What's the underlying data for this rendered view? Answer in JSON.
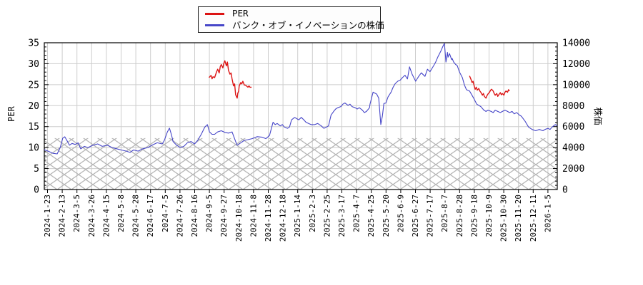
{
  "legend": {
    "position": "top-center",
    "items": [
      {
        "label": "PER",
        "color": "#dc1414"
      },
      {
        "label": "バンク・オブ・イノベーションの株価",
        "color": "#4646c8"
      }
    ]
  },
  "chart_data": {
    "type": "line",
    "title": "",
    "x_encoding": "percent along time axis from 2024-1-23 (0) to 2026-1-5 (≈98.3); values read from chart",
    "x_tick_labels": [
      "2024-1-23",
      "2024-2-13",
      "2024-3-5",
      "2024-3-26",
      "2024-4-15",
      "2024-5-8",
      "2024-5-28",
      "2024-6-17",
      "2024-7-5",
      "2024-7-26",
      "2024-8-16",
      "2024-9-5",
      "2024-9-27",
      "2024-10-18",
      "2024-11-8",
      "2024-11-28",
      "2024-12-18",
      "2025-1-14",
      "2025-2-3",
      "2025-2-25",
      "2025-3-17",
      "2025-4-7",
      "2025-4-25",
      "2025-5-20",
      "2025-6-9",
      "2025-6-27",
      "2025-7-17",
      "2025-8-7",
      "2025-8-28",
      "2025-9-18",
      "2025-10-9",
      "2025-10-30",
      "2025-11-20",
      "2025-12-11",
      "2026-1-5"
    ],
    "left_axis": {
      "label": "PER",
      "min": 0,
      "max": 35,
      "major_tick": 5,
      "minor_tick": 1,
      "tick_labels": [
        "0",
        "5",
        "10",
        "15",
        "20",
        "25",
        "30",
        "35"
      ]
    },
    "right_axis": {
      "label": "株価",
      "min": 0,
      "max": 14000,
      "major_tick": 2000,
      "minor_tick": 400,
      "tick_labels": [
        "0",
        "2000",
        "4000",
        "6000",
        "8000",
        "10000",
        "12000",
        "14000"
      ]
    },
    "grid": true,
    "legend_position": "top-center",
    "hatch_band": {
      "axis": "right",
      "from": 0,
      "to": 4900,
      "pattern": "crosshatch",
      "color": "#b5b5b5"
    },
    "style": {
      "grid_color": "#cdcdcd",
      "axis_color": "#000000",
      "background": "#ffffff"
    },
    "series": [
      {
        "name": "PER",
        "color": "#dc1414",
        "axis": "left",
        "type": "line",
        "segments": [
          [
            [
              32.1,
              26.7
            ],
            [
              32.5,
              27.2
            ],
            [
              32.7,
              26.4
            ],
            [
              32.9,
              26.9
            ],
            [
              33.2,
              26.7
            ],
            [
              33.6,
              28.1
            ],
            [
              33.8,
              28.7
            ],
            [
              34.1,
              27.8
            ],
            [
              34.3,
              29.3
            ],
            [
              34.5,
              29.8
            ],
            [
              34.8,
              29.0
            ],
            [
              35.0,
              30.1
            ],
            [
              35.2,
              30.7
            ],
            [
              35.5,
              29.5
            ],
            [
              35.7,
              30.4
            ],
            [
              35.9,
              28.4
            ],
            [
              36.2,
              27.5
            ],
            [
              36.4,
              27.8
            ],
            [
              36.6,
              26.4
            ],
            [
              36.9,
              24.7
            ],
            [
              37.1,
              25.2
            ],
            [
              37.3,
              22.6
            ],
            [
              37.6,
              21.8
            ],
            [
              37.7,
              22.9
            ],
            [
              37.9,
              23.5
            ],
            [
              38.0,
              24.7
            ],
            [
              38.3,
              25.5
            ],
            [
              38.5,
              25.2
            ],
            [
              38.7,
              25.8
            ],
            [
              39.0,
              24.9
            ],
            [
              39.2,
              24.9
            ],
            [
              39.4,
              24.7
            ],
            [
              39.7,
              24.4
            ],
            [
              39.9,
              24.7
            ],
            [
              40.1,
              24.4
            ],
            [
              40.4,
              24.4
            ]
          ],
          [
            [
              82.9,
              27.1
            ],
            [
              83.2,
              26.2
            ],
            [
              83.4,
              25.5
            ],
            [
              83.6,
              25.8
            ],
            [
              83.8,
              24.7
            ],
            [
              84.0,
              23.9
            ],
            [
              84.2,
              24.4
            ],
            [
              84.4,
              23.7
            ],
            [
              84.7,
              24.1
            ],
            [
              84.9,
              23.5
            ],
            [
              85.1,
              23.2
            ],
            [
              85.4,
              22.5
            ],
            [
              85.6,
              22.9
            ],
            [
              85.8,
              22.2
            ],
            [
              86.1,
              21.8
            ],
            [
              86.3,
              22.4
            ],
            [
              86.5,
              22.8
            ],
            [
              86.8,
              23.2
            ],
            [
              87.0,
              23.7
            ],
            [
              87.2,
              23.9
            ],
            [
              87.5,
              23.5
            ],
            [
              87.7,
              22.9
            ],
            [
              87.9,
              22.5
            ],
            [
              88.2,
              22.9
            ],
            [
              88.4,
              22.2
            ],
            [
              88.6,
              22.6
            ],
            [
              88.9,
              23.1
            ],
            [
              89.1,
              22.6
            ],
            [
              89.3,
              22.9
            ],
            [
              89.6,
              22.5
            ],
            [
              89.8,
              23.2
            ],
            [
              90.0,
              23.5
            ],
            [
              90.3,
              23.2
            ],
            [
              90.5,
              23.8
            ],
            [
              90.7,
              23.5
            ]
          ]
        ]
      },
      {
        "name": "バンク・オブ・イノベーションの株価",
        "color": "#4646c8",
        "axis": "right",
        "type": "line",
        "points": [
          [
            0,
            3800
          ],
          [
            0.8,
            3650
          ],
          [
            1.7,
            3450
          ],
          [
            2.5,
            3400
          ],
          [
            3.1,
            4000
          ],
          [
            3.6,
            4900
          ],
          [
            4.0,
            5030
          ],
          [
            4.5,
            4600
          ],
          [
            4.9,
            4230
          ],
          [
            5.4,
            4400
          ],
          [
            6.0,
            4300
          ],
          [
            6.6,
            4450
          ],
          [
            7.1,
            3880
          ],
          [
            7.8,
            4120
          ],
          [
            8.5,
            4000
          ],
          [
            9.5,
            4230
          ],
          [
            10.4,
            4350
          ],
          [
            11.3,
            4120
          ],
          [
            12.3,
            4230
          ],
          [
            13.2,
            4000
          ],
          [
            14.1,
            3890
          ],
          [
            15.0,
            3770
          ],
          [
            16.0,
            3660
          ],
          [
            16.7,
            3540
          ],
          [
            17.4,
            3770
          ],
          [
            18.3,
            3660
          ],
          [
            19.2,
            3890
          ],
          [
            20.2,
            4000
          ],
          [
            21.0,
            4230
          ],
          [
            22.0,
            4460
          ],
          [
            23.0,
            4350
          ],
          [
            23.4,
            4690
          ],
          [
            24.0,
            5500
          ],
          [
            24.4,
            5860
          ],
          [
            24.8,
            5200
          ],
          [
            25.1,
            4580
          ],
          [
            25.8,
            4230
          ],
          [
            26.5,
            4000
          ],
          [
            27.2,
            4120
          ],
          [
            27.9,
            4460
          ],
          [
            28.6,
            4580
          ],
          [
            29.3,
            4350
          ],
          [
            29.9,
            4690
          ],
          [
            30.6,
            5270
          ],
          [
            31.3,
            5960
          ],
          [
            31.8,
            6190
          ],
          [
            32.2,
            5500
          ],
          [
            32.7,
            5270
          ],
          [
            33.2,
            5270
          ],
          [
            33.8,
            5500
          ],
          [
            34.5,
            5610
          ],
          [
            35.2,
            5450
          ],
          [
            35.9,
            5380
          ],
          [
            36.6,
            5500
          ],
          [
            37.3,
            4580
          ],
          [
            37.6,
            4230
          ],
          [
            38.3,
            4460
          ],
          [
            39.0,
            4690
          ],
          [
            39.7,
            4760
          ],
          [
            40.5,
            4850
          ],
          [
            41.5,
            5040
          ],
          [
            42.5,
            4990
          ],
          [
            43.2,
            4850
          ],
          [
            43.9,
            5150
          ],
          [
            44.6,
            6420
          ],
          [
            45.0,
            6190
          ],
          [
            45.4,
            6300
          ],
          [
            46.0,
            6070
          ],
          [
            46.4,
            6190
          ],
          [
            46.8,
            5960
          ],
          [
            47.4,
            5840
          ],
          [
            47.8,
            5960
          ],
          [
            48.2,
            6650
          ],
          [
            48.8,
            6880
          ],
          [
            49.2,
            6760
          ],
          [
            49.6,
            6650
          ],
          [
            50.1,
            6880
          ],
          [
            50.6,
            6650
          ],
          [
            51.0,
            6420
          ],
          [
            51.5,
            6300
          ],
          [
            52.0,
            6190
          ],
          [
            52.7,
            6190
          ],
          [
            53.3,
            6300
          ],
          [
            54.0,
            6070
          ],
          [
            54.5,
            5840
          ],
          [
            55.0,
            5960
          ],
          [
            55.4,
            6070
          ],
          [
            55.9,
            7110
          ],
          [
            56.4,
            7450
          ],
          [
            56.8,
            7680
          ],
          [
            57.2,
            7800
          ],
          [
            57.8,
            7910
          ],
          [
            58.2,
            8140
          ],
          [
            58.6,
            8260
          ],
          [
            59.2,
            8030
          ],
          [
            59.6,
            8140
          ],
          [
            60.0,
            7910
          ],
          [
            60.6,
            7800
          ],
          [
            61.0,
            7680
          ],
          [
            61.4,
            7800
          ],
          [
            62.0,
            7570
          ],
          [
            62.4,
            7340
          ],
          [
            62.8,
            7450
          ],
          [
            63.4,
            7800
          ],
          [
            63.5,
            8140
          ],
          [
            64.1,
            9290
          ],
          [
            64.8,
            9100
          ],
          [
            65.2,
            8710
          ],
          [
            65.6,
            6200
          ],
          [
            65.9,
            7000
          ],
          [
            66.2,
            8200
          ],
          [
            66.6,
            8260
          ],
          [
            67.0,
            8830
          ],
          [
            67.6,
            9290
          ],
          [
            68.0,
            9750
          ],
          [
            68.4,
            10090
          ],
          [
            68.9,
            10330
          ],
          [
            69.4,
            10440
          ],
          [
            69.8,
            10670
          ],
          [
            70.3,
            10900
          ],
          [
            70.8,
            10550
          ],
          [
            71.2,
            11700
          ],
          [
            71.7,
            11000
          ],
          [
            72.4,
            10330
          ],
          [
            73.0,
            10800
          ],
          [
            73.5,
            11130
          ],
          [
            74.2,
            10790
          ],
          [
            74.7,
            11470
          ],
          [
            75.2,
            11240
          ],
          [
            75.9,
            11820
          ],
          [
            76.3,
            12160
          ],
          [
            76.7,
            12620
          ],
          [
            77.3,
            13200
          ],
          [
            77.7,
            13660
          ],
          [
            78.0,
            13930
          ],
          [
            78.1,
            13310
          ],
          [
            78.3,
            12160
          ],
          [
            78.6,
            13080
          ],
          [
            78.7,
            12620
          ],
          [
            79.0,
            12970
          ],
          [
            79.4,
            12390
          ],
          [
            79.5,
            12510
          ],
          [
            79.8,
            12160
          ],
          [
            80.2,
            11930
          ],
          [
            80.5,
            11820
          ],
          [
            80.9,
            11240
          ],
          [
            81.5,
            10670
          ],
          [
            81.9,
            9980
          ],
          [
            82.3,
            9520
          ],
          [
            82.9,
            9400
          ],
          [
            83.3,
            9060
          ],
          [
            83.7,
            8710
          ],
          [
            84.3,
            8140
          ],
          [
            84.7,
            8030
          ],
          [
            85.1,
            7910
          ],
          [
            85.7,
            7570
          ],
          [
            86.1,
            7450
          ],
          [
            86.5,
            7570
          ],
          [
            87.1,
            7450
          ],
          [
            87.5,
            7340
          ],
          [
            87.9,
            7570
          ],
          [
            88.4,
            7450
          ],
          [
            88.9,
            7340
          ],
          [
            89.3,
            7450
          ],
          [
            89.8,
            7570
          ],
          [
            90.3,
            7450
          ],
          [
            90.7,
            7340
          ],
          [
            91.2,
            7450
          ],
          [
            91.6,
            7220
          ],
          [
            92.1,
            7340
          ],
          [
            92.6,
            7110
          ],
          [
            93.0,
            6990
          ],
          [
            93.7,
            6530
          ],
          [
            94.4,
            5960
          ],
          [
            95.1,
            5730
          ],
          [
            95.8,
            5610
          ],
          [
            96.5,
            5730
          ],
          [
            97.2,
            5610
          ],
          [
            97.6,
            5730
          ],
          [
            98.2,
            5840
          ],
          [
            98.6,
            5730
          ],
          [
            99.0,
            5960
          ],
          [
            99.6,
            6190
          ],
          [
            100,
            6070
          ]
        ]
      }
    ]
  }
}
